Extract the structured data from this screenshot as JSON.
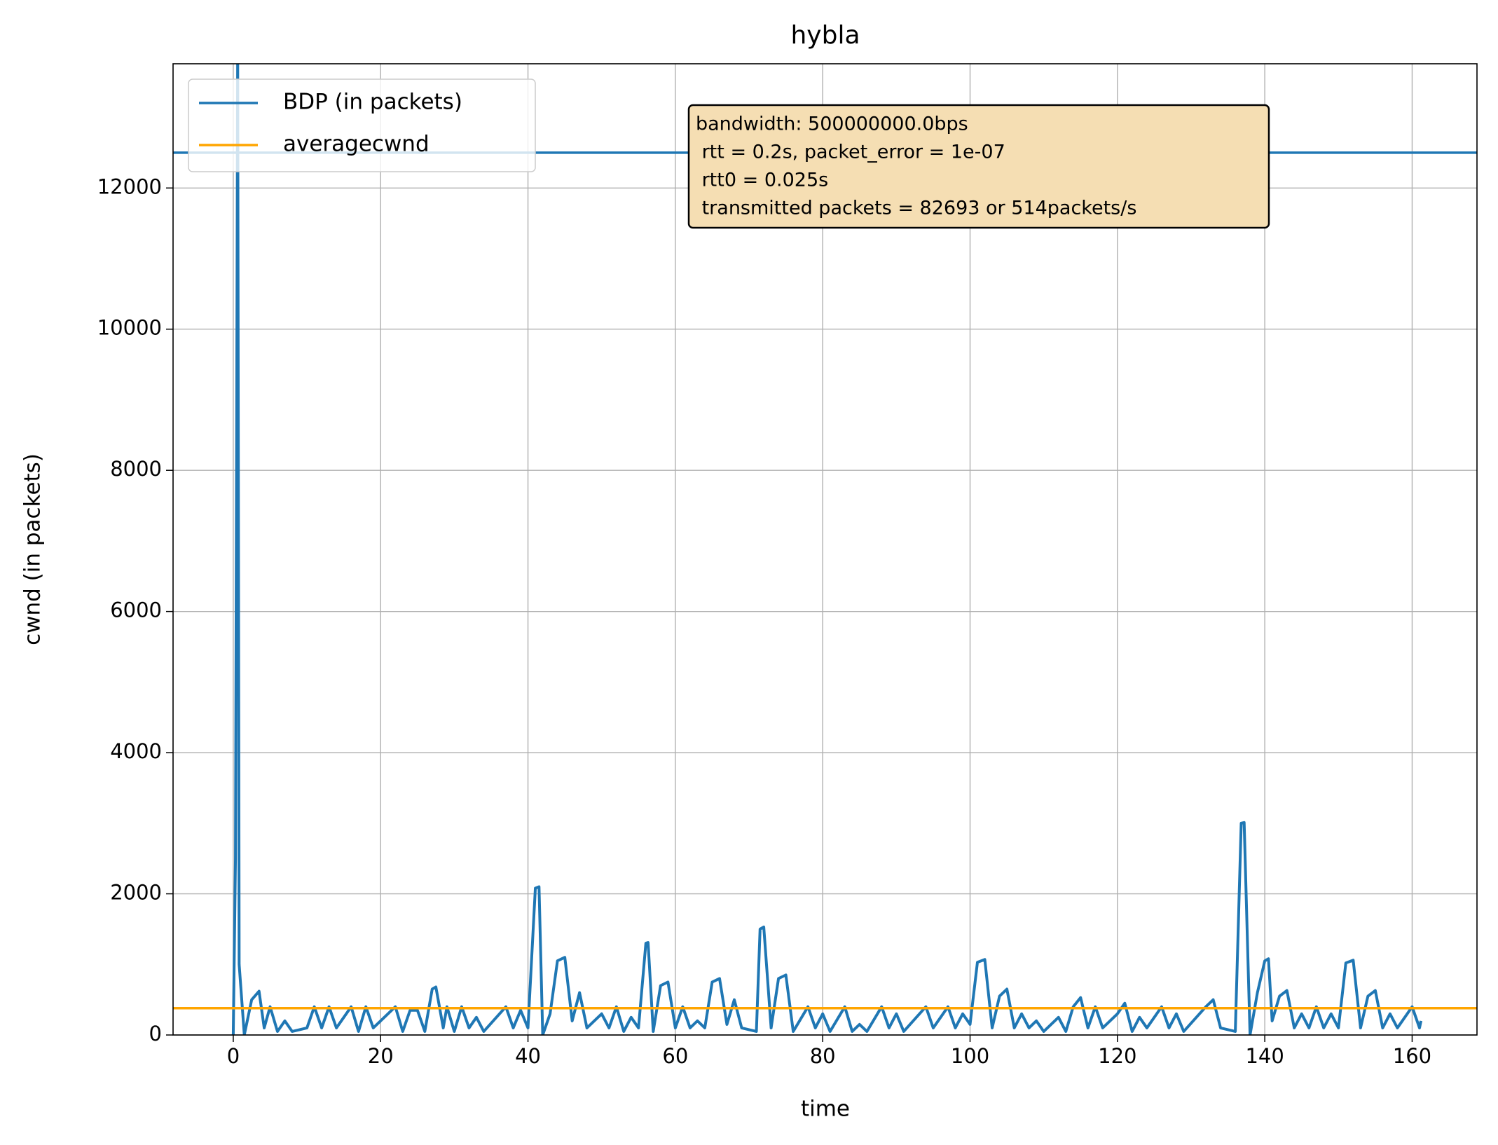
{
  "chart_data": {
    "type": "line",
    "title": "hybla",
    "xlabel": "time",
    "ylabel": "cwnd (in packets)",
    "xlim": [
      -8.17,
      168.8
    ],
    "ylim": [
      0,
      13760
    ],
    "xticks": [
      0,
      20,
      40,
      60,
      80,
      100,
      120,
      140,
      160
    ],
    "yticks": [
      0,
      2000,
      4000,
      6000,
      8000,
      10000,
      12000
    ],
    "grid": true,
    "legend": "upper left",
    "hlines": [
      {
        "name": "BDP (in packets)",
        "color": "#1f77b4",
        "value": 12500
      },
      {
        "name": "averagecwnd",
        "color": "#ffa500",
        "value": 380
      }
    ],
    "series": [
      {
        "color": "#1f77b4",
        "x": [
          0,
          0.3,
          0.6,
          0.8,
          1.5,
          2.5,
          3.5,
          4.2,
          5,
          6,
          7,
          8,
          10,
          11,
          12,
          13,
          14,
          16,
          17,
          18,
          19,
          22,
          23,
          24,
          25,
          26,
          27,
          27.5,
          28.5,
          29,
          30,
          31,
          32,
          33,
          34,
          37,
          38,
          39,
          40,
          41,
          41.5,
          42,
          43,
          44,
          45,
          46,
          47,
          48,
          50,
          51,
          52,
          53,
          54,
          55,
          56,
          56.3,
          57,
          58,
          59,
          60,
          61,
          62,
          63,
          64,
          65,
          66,
          67,
          68,
          69,
          71,
          71.5,
          72,
          73,
          74,
          75,
          76,
          78,
          79,
          80,
          81,
          83,
          84,
          85,
          86,
          88,
          89,
          90,
          91,
          94,
          95,
          97,
          98,
          99,
          100,
          101,
          102,
          103,
          104,
          105,
          106,
          107,
          108,
          109,
          110,
          112,
          113,
          114,
          115,
          116,
          117,
          118,
          120,
          121,
          122,
          123,
          124,
          126,
          127,
          128,
          129,
          132,
          133,
          134,
          136,
          136.8,
          137.2,
          138,
          139,
          140,
          140.5,
          141,
          142,
          143,
          144,
          145,
          146,
          147,
          148,
          149,
          150,
          151,
          152,
          153,
          154,
          155,
          156,
          157,
          158,
          160,
          161,
          161.2
        ],
        "values": [
          0,
          2500,
          14000,
          1000,
          0,
          500,
          620,
          100,
          400,
          50,
          200,
          50,
          100,
          400,
          100,
          400,
          100,
          400,
          50,
          400,
          100,
          400,
          50,
          350,
          350,
          50,
          650,
          680,
          100,
          400,
          50,
          400,
          100,
          250,
          50,
          400,
          100,
          350,
          100,
          2080,
          2100,
          0,
          300,
          1050,
          1100,
          200,
          600,
          100,
          300,
          100,
          400,
          50,
          250,
          100,
          1300,
          1310,
          50,
          700,
          750,
          100,
          400,
          100,
          200,
          100,
          750,
          800,
          150,
          500,
          100,
          50,
          1500,
          1530,
          100,
          800,
          850,
          50,
          400,
          100,
          300,
          50,
          400,
          50,
          150,
          50,
          400,
          100,
          300,
          50,
          400,
          100,
          400,
          100,
          300,
          150,
          1030,
          1070,
          100,
          550,
          650,
          100,
          300,
          100,
          200,
          50,
          250,
          50,
          400,
          530,
          100,
          400,
          100,
          300,
          450,
          50,
          250,
          100,
          400,
          100,
          300,
          50,
          400,
          500,
          100,
          50,
          3000,
          3010,
          0,
          600,
          1050,
          1080,
          200,
          550,
          630,
          100,
          300,
          100,
          400,
          100,
          300,
          100,
          1020,
          1060,
          100,
          550,
          630,
          100,
          300,
          100,
          400,
          100,
          200
        ]
      }
    ],
    "annotation": {
      "lines": [
        "bandwidth: 500000000.0bps",
        " rtt = 0.2s, packet_error = 1e-07",
        " rtt0 = 0.025s",
        " transmitted packets = 82693 or 514packets/s"
      ],
      "background": "#f5deb3"
    }
  }
}
